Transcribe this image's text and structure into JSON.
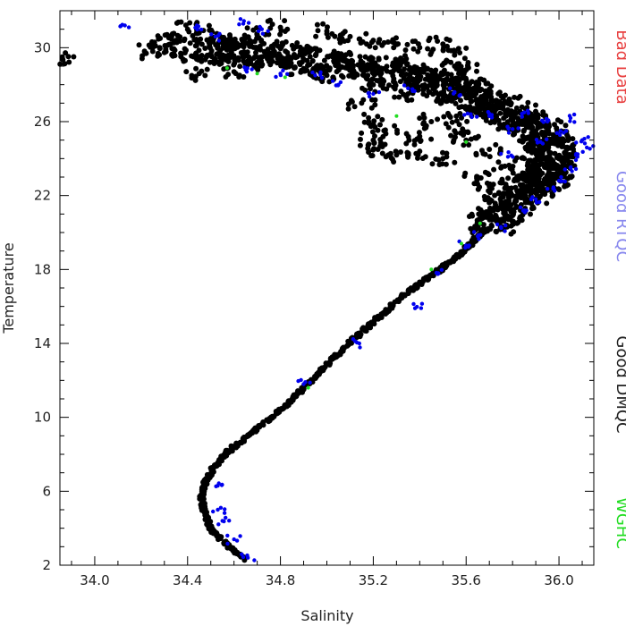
{
  "chart_data": {
    "type": "scatter",
    "xlabel": "Salinity",
    "ylabel": "Temperature",
    "xlim": [
      33.85,
      36.15
    ],
    "ylim": [
      2.0,
      32.0
    ],
    "xticks": [
      34.0,
      34.4,
      34.8,
      35.2,
      35.6,
      36.0
    ],
    "xtick_labels": [
      "34.0",
      "34.4",
      "34.8",
      "35.2",
      "35.6",
      "36.0"
    ],
    "yticks": [
      2,
      6,
      10,
      14,
      18,
      22,
      26,
      30
    ],
    "ytick_labels": [
      "2",
      "6",
      "10",
      "14",
      "18",
      "22",
      "26",
      "30"
    ],
    "grid": false,
    "legend_position": "right",
    "legend": [
      {
        "label": "Bad Data",
        "color": "#e84040"
      },
      {
        "label": "Good RTQC",
        "color": "#8888ee"
      },
      {
        "label": "Good DMQC",
        "color": "#222222"
      },
      {
        "label": "WGHC",
        "color": "#22dd22"
      }
    ],
    "series": [
      {
        "name": "Good DMQC",
        "color": "#000000",
        "marker_radius": 3,
        "curve": [
          [
            34.65,
            2.3
          ],
          [
            34.6,
            2.8
          ],
          [
            34.55,
            3.3
          ],
          [
            34.5,
            4.0
          ],
          [
            34.47,
            5.0
          ],
          [
            34.46,
            5.8
          ],
          [
            34.48,
            6.6
          ],
          [
            34.52,
            7.4
          ],
          [
            34.58,
            8.2
          ],
          [
            34.66,
            9.0
          ],
          [
            34.74,
            9.8
          ],
          [
            34.82,
            10.6
          ],
          [
            34.9,
            11.6
          ],
          [
            34.98,
            12.6
          ],
          [
            35.06,
            13.6
          ],
          [
            35.15,
            14.6
          ],
          [
            35.24,
            15.6
          ],
          [
            35.33,
            16.6
          ],
          [
            35.42,
            17.4
          ],
          [
            35.5,
            18.1
          ],
          [
            35.58,
            18.9
          ],
          [
            35.64,
            19.6
          ],
          [
            35.69,
            20.3
          ],
          [
            35.74,
            21.0
          ],
          [
            35.8,
            21.8
          ],
          [
            35.87,
            22.4
          ],
          [
            35.93,
            23.0
          ],
          [
            35.97,
            23.6
          ],
          [
            35.98,
            24.4
          ],
          [
            35.95,
            25.1
          ],
          [
            35.88,
            25.8
          ],
          [
            35.8,
            26.4
          ],
          [
            35.7,
            27.0
          ],
          [
            35.6,
            27.6
          ],
          [
            35.5,
            28.0
          ],
          [
            35.4,
            28.3
          ],
          [
            35.25,
            28.7
          ],
          [
            35.1,
            29.0
          ],
          [
            34.95,
            29.3
          ],
          [
            34.8,
            29.6
          ],
          [
            34.65,
            29.8
          ],
          [
            34.5,
            29.9
          ],
          [
            34.35,
            30.0
          ]
        ],
        "spread": 0.06,
        "extra_points": [
          [
            33.86,
            29.5
          ],
          [
            34.25,
            29.8
          ],
          [
            34.28,
            30.0
          ],
          [
            34.35,
            30.4
          ],
          [
            34.4,
            31.0
          ],
          [
            34.45,
            30.8
          ],
          [
            34.5,
            30.5
          ],
          [
            34.6,
            30.3
          ],
          [
            34.7,
            30.7
          ],
          [
            34.8,
            31.1
          ],
          [
            35.0,
            30.9
          ],
          [
            35.1,
            30.6
          ],
          [
            35.2,
            30.4
          ],
          [
            35.3,
            30.2
          ],
          [
            35.4,
            30.0
          ],
          [
            35.5,
            30.2
          ],
          [
            35.55,
            29.6
          ],
          [
            35.6,
            28.8
          ],
          [
            35.65,
            28.0
          ],
          [
            35.55,
            29.0
          ],
          [
            35.15,
            27.0
          ],
          [
            35.18,
            26.0
          ],
          [
            35.2,
            25.0
          ],
          [
            35.22,
            24.5
          ],
          [
            35.3,
            24.2
          ],
          [
            35.4,
            24.4
          ],
          [
            35.5,
            24.0
          ],
          [
            35.45,
            26.0
          ],
          [
            35.35,
            27.5
          ],
          [
            35.6,
            25.0
          ],
          [
            35.7,
            24.5
          ],
          [
            35.75,
            23.5
          ],
          [
            35.7,
            22.5
          ],
          [
            35.75,
            26.8
          ],
          [
            35.8,
            25.8
          ],
          [
            35.65,
            26.8
          ],
          [
            35.85,
            24.0
          ],
          [
            35.9,
            24.8
          ],
          [
            35.0,
            28.5
          ],
          [
            34.9,
            28.8
          ],
          [
            34.7,
            29.2
          ],
          [
            34.6,
            28.7
          ],
          [
            34.45,
            28.6
          ],
          [
            34.55,
            29.4
          ],
          [
            35.3,
            29.2
          ],
          [
            35.45,
            28.5
          ],
          [
            35.5,
            27.2
          ],
          [
            35.58,
            26.2
          ],
          [
            35.65,
            23.0
          ],
          [
            35.72,
            20.8
          ],
          [
            35.8,
            22.0
          ],
          [
            35.85,
            23.2
          ],
          [
            35.2,
            28.0
          ],
          [
            35.25,
            25.5
          ],
          [
            35.4,
            25.2
          ],
          [
            35.55,
            25.5
          ],
          [
            35.9,
            26.0
          ],
          [
            36.0,
            24.0
          ],
          [
            35.95,
            22.8
          ]
        ]
      },
      {
        "name": "Good RTQC",
        "color": "#0000ee",
        "marker_radius": 2.2,
        "points": [
          [
            34.13,
            31.2
          ],
          [
            34.44,
            31.2
          ],
          [
            34.52,
            30.6
          ],
          [
            34.64,
            31.3
          ],
          [
            34.72,
            31.0
          ],
          [
            34.95,
            28.5
          ],
          [
            35.05,
            28.0
          ],
          [
            35.2,
            27.5
          ],
          [
            35.35,
            27.8
          ],
          [
            35.55,
            27.6
          ],
          [
            35.7,
            26.3
          ],
          [
            35.85,
            26.5
          ],
          [
            35.95,
            26.0
          ],
          [
            36.05,
            26.2
          ],
          [
            36.1,
            25.0
          ],
          [
            36.12,
            24.6
          ],
          [
            36.08,
            24.1
          ],
          [
            36.05,
            23.5
          ],
          [
            36.0,
            22.8
          ],
          [
            35.98,
            22.3
          ],
          [
            35.9,
            21.8
          ],
          [
            35.85,
            21.2
          ],
          [
            35.75,
            20.3
          ],
          [
            35.65,
            19.8
          ],
          [
            35.6,
            19.3
          ],
          [
            35.48,
            17.8
          ],
          [
            35.38,
            15.9
          ],
          [
            35.14,
            14.0
          ],
          [
            34.9,
            11.8
          ],
          [
            34.53,
            6.3
          ],
          [
            34.53,
            5.0
          ],
          [
            34.55,
            4.4
          ],
          [
            34.6,
            3.4
          ],
          [
            34.66,
            2.4
          ],
          [
            34.8,
            28.6
          ],
          [
            34.65,
            28.8
          ],
          [
            35.62,
            26.4
          ],
          [
            35.8,
            25.6
          ],
          [
            36.02,
            25.4
          ],
          [
            35.92,
            24.9
          ],
          [
            35.78,
            24.1
          ]
        ]
      },
      {
        "name": "WGHC",
        "color": "#22dd22",
        "marker_radius": 2,
        "points": [
          [
            34.57,
            28.9
          ],
          [
            34.7,
            28.6
          ],
          [
            34.82,
            28.4
          ],
          [
            35.3,
            26.3
          ],
          [
            35.6,
            24.9
          ],
          [
            35.66,
            20.5
          ],
          [
            35.58,
            19.4
          ],
          [
            35.45,
            18.0
          ],
          [
            34.92,
            11.6
          ]
        ]
      }
    ]
  }
}
